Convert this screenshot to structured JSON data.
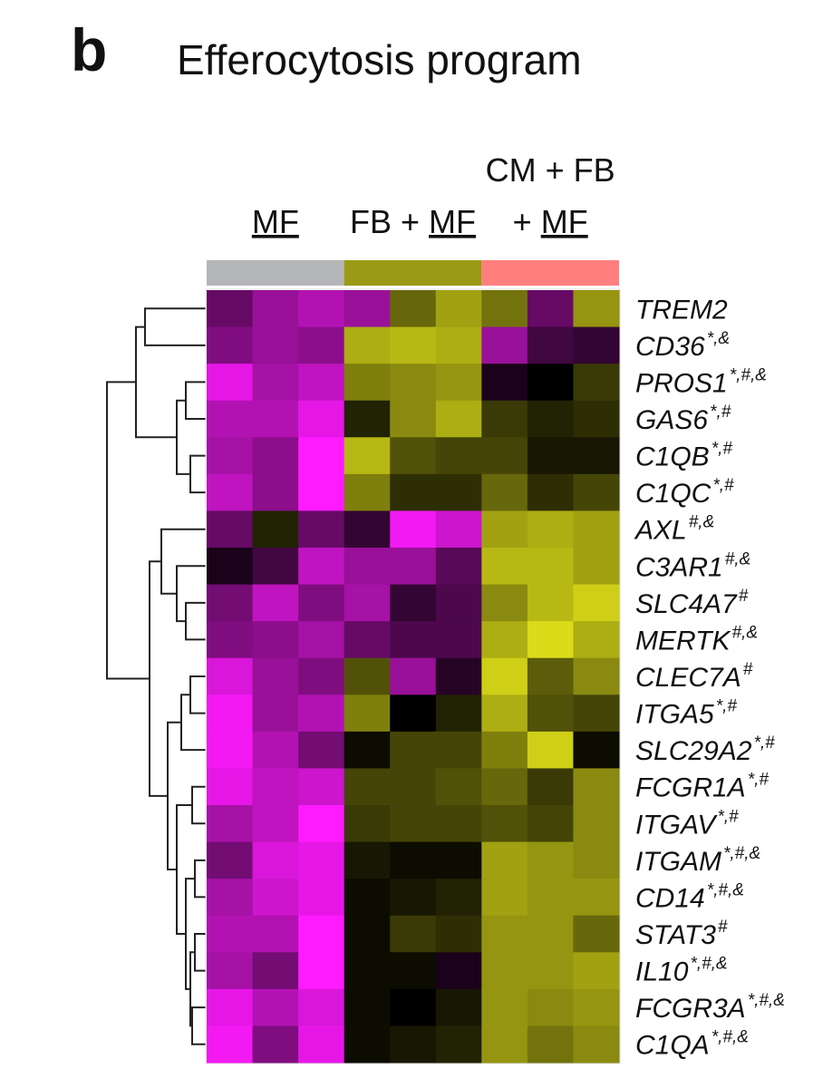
{
  "panel_label": "b",
  "chart_data": {
    "type": "heatmap",
    "title": "Efferocytosis program",
    "groups": [
      {
        "underlined": "MF",
        "color": "#b4b6b8",
        "columns": 3
      },
      {
        "prefix": "FB + ",
        "underlined": "MF",
        "color": "#9a9a14",
        "columns": 3
      },
      {
        "line1": "CM + FB",
        "prefix": "+ ",
        "underlined": "MF",
        "color": "#ff7f7f",
        "columns": 3
      }
    ],
    "rows": [
      {
        "name": "TREM2"
      },
      {
        "name": "CD36",
        "sup": "*,&"
      },
      {
        "name": "PROS1",
        "sup": "*,#,&"
      },
      {
        "name": "GAS6",
        "sup": "*,#"
      },
      {
        "name": "C1QB",
        "sup": "*,#"
      },
      {
        "name": "C1QC",
        "sup": "*,#"
      },
      {
        "name": "AXL",
        "sup": "#,&"
      },
      {
        "name": "C3AR1",
        "sup": "#,&"
      },
      {
        "name": "SLC4A7",
        "sup": "#"
      },
      {
        "name": "MERTK",
        "sup": "#,&"
      },
      {
        "name": "CLEC7A",
        "sup": "#"
      },
      {
        "name": "ITGA5",
        "sup": "*,#"
      },
      {
        "name": "SLC29A2",
        "sup": "*,#"
      },
      {
        "name": "FCGR1A",
        "sup": "*,#"
      },
      {
        "name": "ITGAV",
        "sup": "*,#"
      },
      {
        "name": "ITGAM",
        "sup": "*,#,&"
      },
      {
        "name": "CD14",
        "sup": "*,#,&"
      },
      {
        "name": "STAT3",
        "sup": "#"
      },
      {
        "name": "IL10",
        "sup": "*,#,&"
      },
      {
        "name": "FCGR3A",
        "sup": "*,#,&"
      },
      {
        "name": "C1QA",
        "sup": "*,#,&"
      }
    ],
    "values": [
      [
        -0.8,
        -1.2,
        -1.4,
        -1.2,
        0.9,
        1.4,
        1.0,
        -0.8,
        1.3
      ],
      [
        -1.0,
        -1.2,
        -1.1,
        1.5,
        1.6,
        1.5,
        -1.2,
        -0.5,
        -0.4
      ],
      [
        -1.8,
        -1.3,
        -1.5,
        1.1,
        1.2,
        1.3,
        -0.2,
        0,
        0.5
      ],
      [
        -1.4,
        -1.4,
        -1.8,
        0.3,
        1.2,
        1.5,
        0.5,
        0.3,
        0.4
      ],
      [
        -1.3,
        -1.1,
        -2.0,
        1.6,
        0.7,
        0.6,
        0.6,
        0.2,
        0.2
      ],
      [
        -1.5,
        -1.1,
        -2.0,
        1.1,
        0.4,
        0.4,
        0.9,
        0.4,
        0.6
      ],
      [
        -0.8,
        0.3,
        -0.8,
        -0.4,
        -1.9,
        -1.6,
        1.4,
        1.5,
        1.4
      ],
      [
        -0.2,
        -0.5,
        -1.5,
        -1.2,
        -1.2,
        -0.7,
        1.6,
        1.6,
        1.4
      ],
      [
        -0.9,
        -1.5,
        -1.0,
        -1.3,
        -0.4,
        -0.6,
        1.2,
        1.6,
        1.8
      ],
      [
        -1.0,
        -1.1,
        -1.3,
        -0.8,
        -0.6,
        -0.6,
        1.5,
        1.9,
        1.5
      ],
      [
        -1.7,
        -1.2,
        -1.0,
        0.7,
        -1.2,
        -0.3,
        1.8,
        0.8,
        1.2
      ],
      [
        -1.9,
        -1.2,
        -1.4,
        1.1,
        0,
        0.3,
        1.5,
        0.7,
        0.6
      ],
      [
        -1.9,
        -1.4,
        -0.9,
        0.1,
        0.6,
        0.6,
        1.1,
        1.8,
        0.1
      ],
      [
        -1.8,
        -1.5,
        -1.6,
        0.6,
        0.6,
        0.7,
        0.9,
        0.5,
        1.2
      ],
      [
        -1.3,
        -1.5,
        -2.0,
        0.5,
        0.6,
        0.6,
        0.7,
        0.6,
        1.2
      ],
      [
        -0.9,
        -1.7,
        -1.8,
        0.2,
        0.1,
        0.1,
        1.4,
        1.3,
        1.2
      ],
      [
        -1.3,
        -1.6,
        -1.8,
        0.1,
        0.2,
        0.3,
        1.4,
        1.3,
        1.3
      ],
      [
        -1.4,
        -1.4,
        -2.0,
        0.1,
        0.5,
        0.4,
        1.3,
        1.3,
        0.9
      ],
      [
        -1.3,
        -0.9,
        -2.0,
        0.1,
        0.1,
        -0.2,
        1.3,
        1.3,
        1.4
      ],
      [
        -1.8,
        -1.4,
        -1.7,
        0.1,
        0.0,
        0.2,
        1.3,
        1.2,
        1.3
      ],
      [
        -1.9,
        -1.0,
        -1.8,
        0.1,
        0.2,
        0.3,
        1.3,
        1.0,
        1.2
      ]
    ],
    "vlim": [
      -2,
      2
    ],
    "colormap": [
      "#ff1aff",
      "#000000",
      "#e6e61a"
    ]
  }
}
